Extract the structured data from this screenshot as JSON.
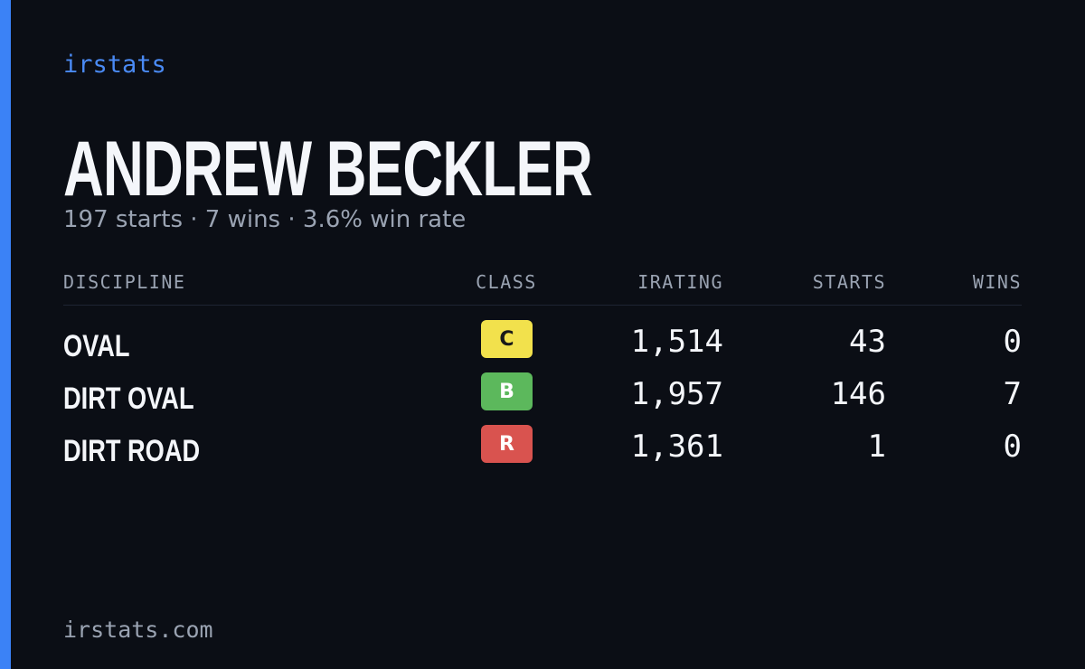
{
  "brand": "irstats",
  "driver": {
    "name": "ANDREW BECKLER",
    "summary": "197 starts · 7 wins · 3.6% win rate"
  },
  "table": {
    "headers": [
      "DISCIPLINE",
      "CLASS",
      "IRATING",
      "STARTS",
      "WINS"
    ],
    "rows": [
      {
        "discipline": "OVAL",
        "class": "C",
        "class_color": "#f2e14c",
        "class_text_color": "#1a1a1a",
        "irating": "1,514",
        "starts": 43,
        "wins": 0
      },
      {
        "discipline": "DIRT OVAL",
        "class": "B",
        "class_color": "#5cb85c",
        "class_text_color": "#ffffff",
        "irating": "1,957",
        "starts": 146,
        "wins": 7
      },
      {
        "discipline": "DIRT ROAD",
        "class": "R",
        "class_color": "#d9534f",
        "class_text_color": "#ffffff",
        "irating": "1,361",
        "starts": 1,
        "wins": 0
      }
    ]
  },
  "footer": "irstats.com"
}
